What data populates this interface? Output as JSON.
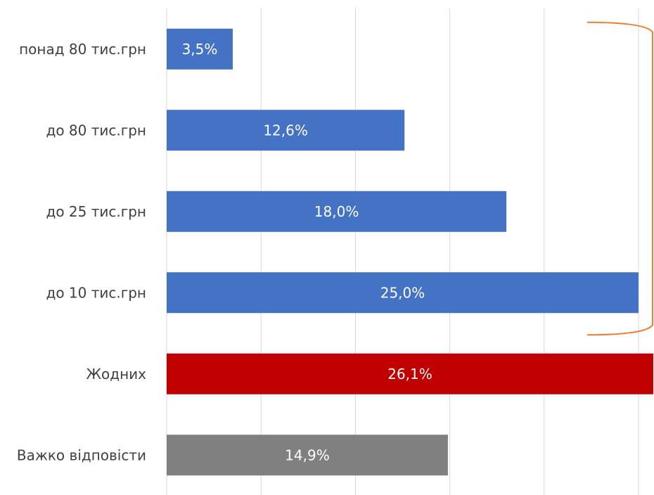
{
  "chart_data": {
    "type": "bar",
    "orientation": "horizontal",
    "categories": [
      "понад 80 тис.грн",
      "до 80 тис.грн",
      "до 25 тис.грн",
      "до 10 тис.грн",
      "Жодних",
      "Важко відповісти"
    ],
    "values": [
      3.5,
      12.6,
      18.0,
      25.0,
      26.1,
      14.9
    ],
    "value_labels": [
      "3,5%",
      "12,6%",
      "18,0%",
      "25,0%",
      "26,1%",
      "14,9%"
    ],
    "bar_colors": [
      "#4472C4",
      "#4472C4",
      "#4472C4",
      "#4472C4",
      "#C00000",
      "#808080"
    ],
    "xlim": [
      0,
      25
    ],
    "grid": true,
    "bracket": {
      "color": "#ED7D31",
      "spans_categories": [
        "понад 80 тис.грн",
        "до 10 тис.грн"
      ]
    }
  }
}
